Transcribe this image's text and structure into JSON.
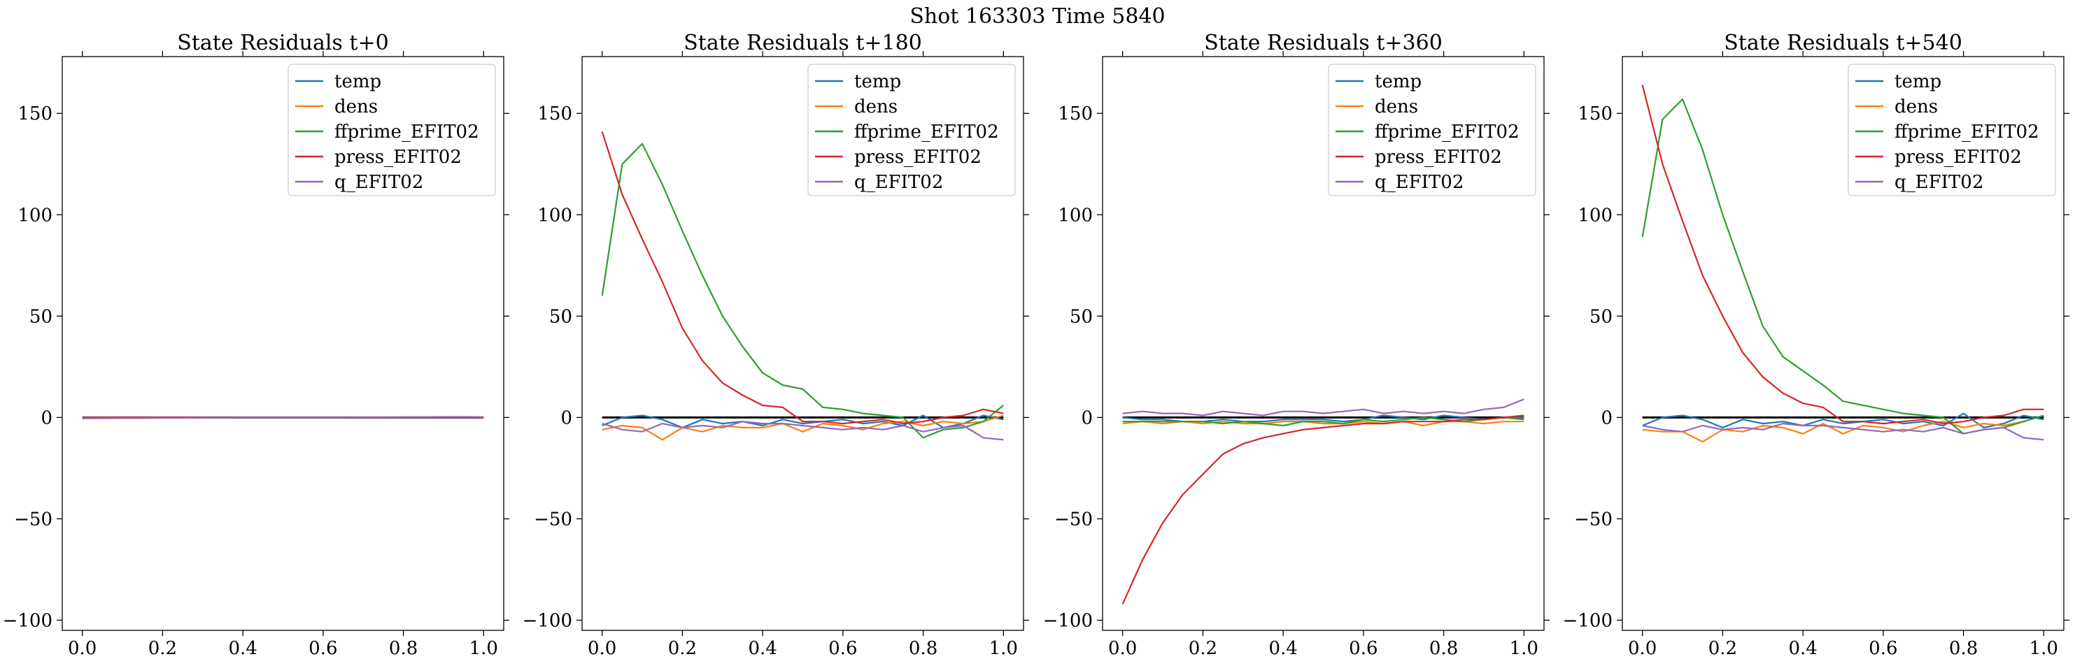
{
  "suptitle": "Shot 163303   Time 5840",
  "chart_data": [
    {
      "type": "line",
      "title": "State Residuals t+0",
      "xlim": [
        -0.05,
        1.05
      ],
      "ylim": [
        -105,
        178
      ],
      "xticks": [
        0.0,
        0.2,
        0.4,
        0.6,
        0.8,
        1.0
      ],
      "xtick_labels": [
        "0.0",
        "0.2",
        "0.4",
        "0.6",
        "0.8",
        "1.0"
      ],
      "yticks": [
        -100,
        -50,
        0,
        50,
        100,
        150
      ],
      "ytick_labels": [
        "−100",
        "−50",
        "0",
        "50",
        "100",
        "150"
      ],
      "x": [
        0.0,
        0.05,
        0.1,
        0.15,
        0.2,
        0.25,
        0.3,
        0.35,
        0.4,
        0.45,
        0.5,
        0.55,
        0.6,
        0.65,
        0.7,
        0.75,
        0.8,
        0.85,
        0.9,
        0.95,
        1.0
      ],
      "zero_line": true,
      "legend_position": "upper right",
      "series": [
        {
          "name": "temp",
          "color": "#1f77b4",
          "values": [
            0,
            0,
            0,
            0,
            0,
            0,
            0,
            0,
            0,
            0,
            0,
            0,
            0,
            0,
            0,
            0,
            0,
            0,
            0,
            0,
            0
          ]
        },
        {
          "name": "dens",
          "color": "#ff7f0e",
          "values": [
            0,
            0,
            0,
            0,
            0,
            0,
            0,
            0,
            0,
            0,
            0,
            0,
            0,
            0,
            0,
            0,
            0,
            0,
            0,
            0,
            0
          ]
        },
        {
          "name": "ffprime_EFIT02",
          "color": "#2ca02c",
          "values": [
            0,
            0,
            0,
            0,
            0,
            0,
            0,
            0,
            0,
            0,
            0,
            0,
            0,
            0,
            0,
            0,
            0,
            0,
            0,
            0,
            0
          ]
        },
        {
          "name": "press_EFIT02",
          "color": "#d62728",
          "values": [
            0,
            0,
            0,
            0,
            0,
            0,
            0,
            0,
            0,
            0,
            0,
            0,
            0,
            0,
            0,
            0,
            0,
            0,
            0,
            0,
            0
          ]
        },
        {
          "name": "q_EFIT02",
          "color": "#9467bd",
          "values": [
            -0.5,
            -0.4,
            -0.3,
            -0.3,
            -0.2,
            -0.2,
            -0.1,
            -0.1,
            0,
            0,
            0,
            0,
            0,
            0,
            0.1,
            0.1,
            0.2,
            0.2,
            0.3,
            0.3,
            0.2
          ]
        }
      ]
    },
    {
      "type": "line",
      "title": "State Residuals t+180",
      "xlim": [
        -0.05,
        1.05
      ],
      "ylim": [
        -105,
        178
      ],
      "xticks": [
        0.0,
        0.2,
        0.4,
        0.6,
        0.8,
        1.0
      ],
      "xtick_labels": [
        "0.0",
        "0.2",
        "0.4",
        "0.6",
        "0.8",
        "1.0"
      ],
      "yticks": [
        -100,
        -50,
        0,
        50,
        100,
        150
      ],
      "ytick_labels": [
        "−100",
        "−50",
        "0",
        "50",
        "100",
        "150"
      ],
      "x": [
        0.0,
        0.05,
        0.1,
        0.15,
        0.2,
        0.25,
        0.3,
        0.35,
        0.4,
        0.45,
        0.5,
        0.55,
        0.6,
        0.65,
        0.7,
        0.75,
        0.8,
        0.85,
        0.9,
        0.95,
        1.0
      ],
      "zero_line": true,
      "legend_position": "upper right",
      "series": [
        {
          "name": "temp",
          "color": "#1f77b4",
          "values": [
            -4,
            0,
            1,
            -1,
            -5,
            -1,
            -3,
            -2,
            -4,
            -1,
            -3,
            -2,
            -1,
            -3,
            -2,
            -4,
            1,
            -5,
            -3,
            1,
            -1
          ]
        },
        {
          "name": "dens",
          "color": "#ff7f0e",
          "values": [
            -6,
            -4,
            -5,
            -11,
            -5,
            -7,
            -4,
            -5,
            -5,
            -3,
            -7,
            -3,
            -4,
            -6,
            -3,
            -2,
            -4,
            -2,
            -3,
            -2,
            1
          ]
        },
        {
          "name": "ffprime_EFIT02",
          "color": "#2ca02c",
          "values": [
            60,
            125,
            135,
            115,
            92,
            70,
            50,
            35,
            22,
            16,
            14,
            5,
            4,
            2,
            1,
            0,
            -10,
            -6,
            -5,
            -2,
            6
          ]
        },
        {
          "name": "press_EFIT02",
          "color": "#d62728",
          "values": [
            141,
            110,
            88,
            67,
            44,
            28,
            17,
            11,
            6,
            5,
            -2,
            -2,
            -3,
            -2,
            -1,
            -3,
            -2,
            0,
            1,
            4,
            2
          ]
        },
        {
          "name": "q_EFIT02",
          "color": "#9467bd",
          "values": [
            -3,
            -6,
            -7,
            -3,
            -5,
            -4,
            -5,
            -2,
            -3,
            -3,
            -4,
            -5,
            -6,
            -5,
            -6,
            -4,
            -7,
            -5,
            -4,
            -10,
            -11
          ]
        }
      ]
    },
    {
      "type": "line",
      "title": "State Residuals t+360",
      "xlim": [
        -0.05,
        1.05
      ],
      "ylim": [
        -105,
        178
      ],
      "xticks": [
        0.0,
        0.2,
        0.4,
        0.6,
        0.8,
        1.0
      ],
      "xtick_labels": [
        "0.0",
        "0.2",
        "0.4",
        "0.6",
        "0.8",
        "1.0"
      ],
      "yticks": [
        -100,
        -50,
        0,
        50,
        100,
        150
      ],
      "ytick_labels": [
        "−100",
        "−50",
        "0",
        "50",
        "100",
        "150"
      ],
      "x": [
        0.0,
        0.05,
        0.1,
        0.15,
        0.2,
        0.25,
        0.3,
        0.35,
        0.4,
        0.45,
        0.5,
        0.55,
        0.6,
        0.65,
        0.7,
        0.75,
        0.8,
        0.85,
        0.9,
        0.95,
        1.0
      ],
      "zero_line": true,
      "legend_position": "upper right",
      "series": [
        {
          "name": "temp",
          "color": "#1f77b4",
          "values": [
            0,
            -1,
            -1,
            -2,
            -2,
            -1,
            -2,
            -2,
            -1,
            -1,
            -1,
            -2,
            -1,
            1,
            0,
            -1,
            1,
            0,
            -1,
            0,
            0
          ]
        },
        {
          "name": "dens",
          "color": "#ff7f0e",
          "values": [
            -3,
            -2,
            -3,
            -2,
            -3,
            -2,
            -3,
            -3,
            -2,
            -2,
            -3,
            -3,
            -2,
            -3,
            -2,
            -4,
            -2,
            -2,
            -3,
            -2,
            -2
          ]
        },
        {
          "name": "ffprime_EFIT02",
          "color": "#2ca02c",
          "values": [
            -2,
            -2,
            -2,
            -2,
            -2,
            -3,
            -2,
            -3,
            -4,
            -2,
            -2,
            -3,
            -1,
            -2,
            -1,
            0,
            -1,
            -2,
            -1,
            0,
            -1
          ]
        },
        {
          "name": "press_EFIT02",
          "color": "#d62728",
          "values": [
            -92,
            -70,
            -52,
            -38,
            -28,
            -18,
            -13,
            -10,
            -8,
            -6,
            -5,
            -4,
            -3,
            -3,
            -2,
            -2,
            -2,
            -1,
            -1,
            0,
            1
          ]
        },
        {
          "name": "q_EFIT02",
          "color": "#9467bd",
          "values": [
            2,
            3,
            2,
            2,
            1,
            3,
            2,
            1,
            3,
            3,
            2,
            3,
            4,
            2,
            3,
            2,
            3,
            2,
            4,
            5,
            9
          ]
        }
      ]
    },
    {
      "type": "line",
      "title": "State Residuals t+540",
      "xlim": [
        -0.05,
        1.05
      ],
      "ylim": [
        -105,
        178
      ],
      "xticks": [
        0.0,
        0.2,
        0.4,
        0.6,
        0.8,
        1.0
      ],
      "xtick_labels": [
        "0.0",
        "0.2",
        "0.4",
        "0.6",
        "0.8",
        "1.0"
      ],
      "yticks": [
        -100,
        -50,
        0,
        50,
        100,
        150
      ],
      "ytick_labels": [
        "−100",
        "−50",
        "0",
        "50",
        "100",
        "150"
      ],
      "x": [
        0.0,
        0.05,
        0.1,
        0.15,
        0.2,
        0.25,
        0.3,
        0.35,
        0.4,
        0.45,
        0.5,
        0.55,
        0.6,
        0.65,
        0.7,
        0.75,
        0.8,
        0.85,
        0.9,
        0.95,
        1.0
      ],
      "zero_line": true,
      "legend_position": "upper right",
      "series": [
        {
          "name": "temp",
          "color": "#1f77b4",
          "values": [
            -4,
            0,
            1,
            -1,
            -5,
            -1,
            -3,
            -2,
            -4,
            -1,
            -3,
            -2,
            -1,
            -3,
            -2,
            -4,
            2,
            -5,
            -3,
            1,
            -1
          ]
        },
        {
          "name": "dens",
          "color": "#ff7f0e",
          "values": [
            -6,
            -7,
            -7,
            -12,
            -6,
            -7,
            -4,
            -5,
            -8,
            -3,
            -8,
            -4,
            -5,
            -7,
            -4,
            -2,
            -5,
            -3,
            -4,
            -2,
            1
          ]
        },
        {
          "name": "ffprime_EFIT02",
          "color": "#2ca02c",
          "values": [
            89,
            147,
            157,
            132,
            100,
            72,
            45,
            30,
            23,
            16,
            8,
            6,
            4,
            2,
            1,
            0,
            -8,
            -6,
            -5,
            -2,
            1
          ]
        },
        {
          "name": "press_EFIT02",
          "color": "#d62728",
          "values": [
            164,
            125,
            97,
            70,
            50,
            32,
            20,
            12,
            7,
            5,
            -2,
            -2,
            -3,
            -2,
            -1,
            -3,
            -2,
            0,
            1,
            4,
            4
          ]
        },
        {
          "name": "q_EFIT02",
          "color": "#9467bd",
          "values": [
            -4,
            -6,
            -7,
            -4,
            -6,
            -5,
            -6,
            -3,
            -4,
            -4,
            -5,
            -6,
            -7,
            -6,
            -7,
            -5,
            -8,
            -6,
            -5,
            -10,
            -11
          ]
        }
      ]
    }
  ]
}
